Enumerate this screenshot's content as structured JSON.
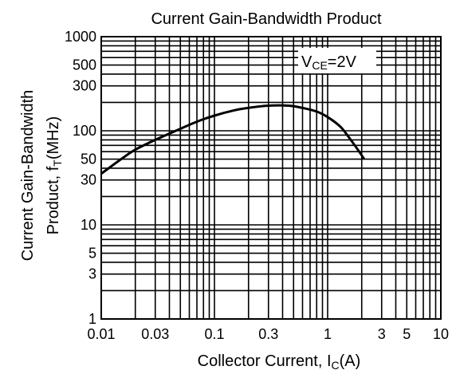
{
  "chart_data": {
    "type": "line",
    "title": "Current Gain-Bandwidth Product",
    "xlabel": "Collector Current, I",
    "xlabel_sub": "C",
    "xlabel_unit": "(A)",
    "ylabel_line1": "Current Gain-Bandwidth",
    "ylabel_line2": "Product, f",
    "ylabel_sub": "T",
    "ylabel_unit": "(MHz)",
    "annotation": {
      "main": "V",
      "sub": "CE",
      "rest": "=2V"
    },
    "xscale": "log",
    "yscale": "log",
    "xlim": [
      0.01,
      10
    ],
    "ylim": [
      1,
      1000
    ],
    "grid": true,
    "x_tick_labels": [
      "0.01",
      "0.03",
      "0.1",
      "0.3",
      "1",
      "3",
      "5",
      "10"
    ],
    "x_tick_values": [
      0.01,
      0.03,
      0.1,
      0.3,
      1,
      3,
      5,
      10
    ],
    "y_tick_labels": [
      "1",
      "3",
      "5",
      "10",
      "30",
      "50",
      "100",
      "300",
      "500",
      "1000"
    ],
    "y_tick_values": [
      1,
      3,
      5,
      10,
      30,
      50,
      100,
      300,
      500,
      1000
    ],
    "series": [
      {
        "x": [
          0.01,
          0.015,
          0.02,
          0.03,
          0.05,
          0.07,
          0.1,
          0.15,
          0.2,
          0.3,
          0.45,
          0.6,
          0.8,
          1.0,
          1.3,
          1.6,
          1.9,
          2.1
        ],
        "y": [
          35,
          50,
          63,
          80,
          105,
          125,
          145,
          165,
          175,
          185,
          185,
          175,
          160,
          140,
          110,
          80,
          60,
          50
        ]
      }
    ]
  }
}
